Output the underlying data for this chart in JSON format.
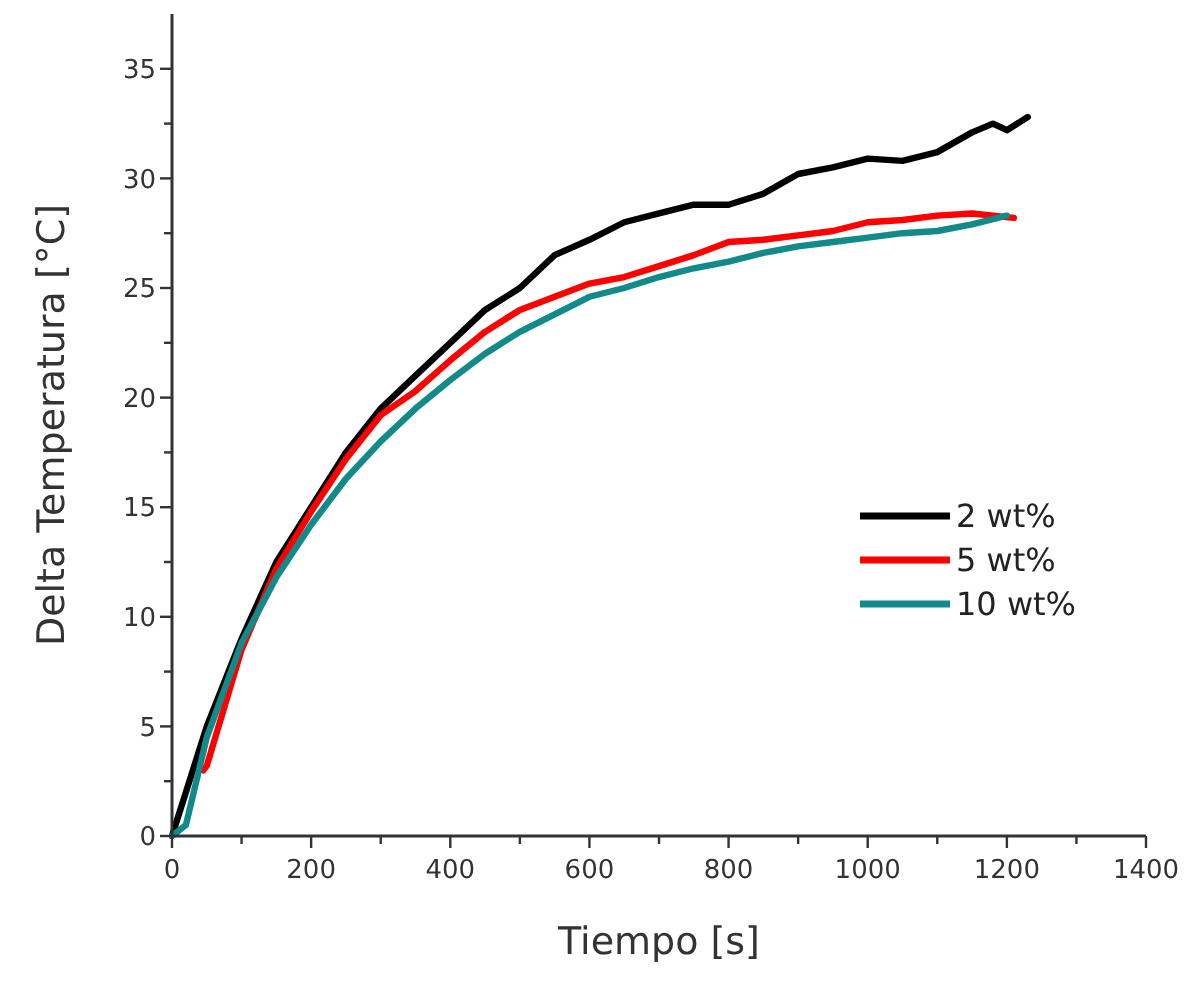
{
  "chart_data": {
    "type": "line",
    "xlabel": "Tiempo [s]",
    "ylabel": "Delta Temperatura [°C]",
    "xlim": [
      0,
      1400
    ],
    "ylim": [
      0,
      37.5
    ],
    "xticks": [
      0,
      {
        "value": 100,
        "label": null
      },
      200,
      {
        "value": 300,
        "label": null
      },
      400,
      {
        "value": 500,
        "label": null
      },
      600,
      {
        "value": 700,
        "label": null
      },
      800,
      {
        "value": 900,
        "label": null
      },
      1000,
      {
        "value": 1100,
        "label": null
      },
      1200,
      {
        "value": 1300,
        "label": null
      },
      1400
    ],
    "yticks": [
      0,
      {
        "value": 2.5,
        "label": null
      },
      5,
      {
        "value": 7.5,
        "label": null
      },
      10,
      {
        "value": 12.5,
        "label": null
      },
      15,
      {
        "value": 17.5,
        "label": null
      },
      20,
      {
        "value": 22.5,
        "label": null
      },
      25,
      {
        "value": 27.5,
        "label": null
      },
      30,
      {
        "value": 32.5,
        "label": null
      },
      35
    ],
    "legend": "right",
    "grid": false,
    "marker": "none",
    "line_style": "solid",
    "series": [
      {
        "name": "2 wt%",
        "color": "#000000",
        "x": [
          0,
          50,
          100,
          150,
          200,
          250,
          300,
          350,
          400,
          450,
          500,
          550,
          600,
          650,
          700,
          750,
          800,
          850,
          900,
          950,
          1000,
          1050,
          1100,
          1150,
          1180,
          1200,
          1230
        ],
        "values": [
          0,
          5,
          9,
          12.5,
          15,
          17.5,
          19.5,
          21,
          22.5,
          24,
          25,
          26.5,
          27.2,
          28,
          28.4,
          28.8,
          28.8,
          29.3,
          30.2,
          30.5,
          30.9,
          30.8,
          31.2,
          32.1,
          32.5,
          32.2,
          32.8
        ]
      },
      {
        "name": "5 wt%",
        "color": "#ff0000",
        "x": [
          45,
          50,
          100,
          150,
          200,
          250,
          300,
          350,
          400,
          450,
          500,
          550,
          600,
          650,
          700,
          750,
          800,
          850,
          900,
          950,
          1000,
          1050,
          1100,
          1150,
          1210
        ],
        "values": [
          3,
          3.2,
          8.5,
          12.2,
          14.8,
          17.2,
          19.2,
          20.3,
          21.7,
          23,
          24,
          24.6,
          25.2,
          25.5,
          26,
          26.5,
          27.1,
          27.2,
          27.4,
          27.6,
          28,
          28.1,
          28.3,
          28.4,
          28.2
        ]
      },
      {
        "name": "10 wt%",
        "color": "#128a8a",
        "x": [
          0,
          20,
          50,
          100,
          150,
          200,
          250,
          300,
          350,
          400,
          450,
          500,
          550,
          600,
          650,
          700,
          750,
          800,
          850,
          900,
          950,
          1000,
          1050,
          1100,
          1150,
          1200
        ],
        "values": [
          0,
          0.5,
          4.5,
          8.8,
          11.8,
          14.2,
          16.3,
          18,
          19.5,
          20.8,
          22,
          23,
          23.8,
          24.6,
          25,
          25.5,
          25.9,
          26.2,
          26.6,
          26.9,
          27.1,
          27.3,
          27.5,
          27.6,
          27.9,
          28.3
        ]
      }
    ]
  }
}
